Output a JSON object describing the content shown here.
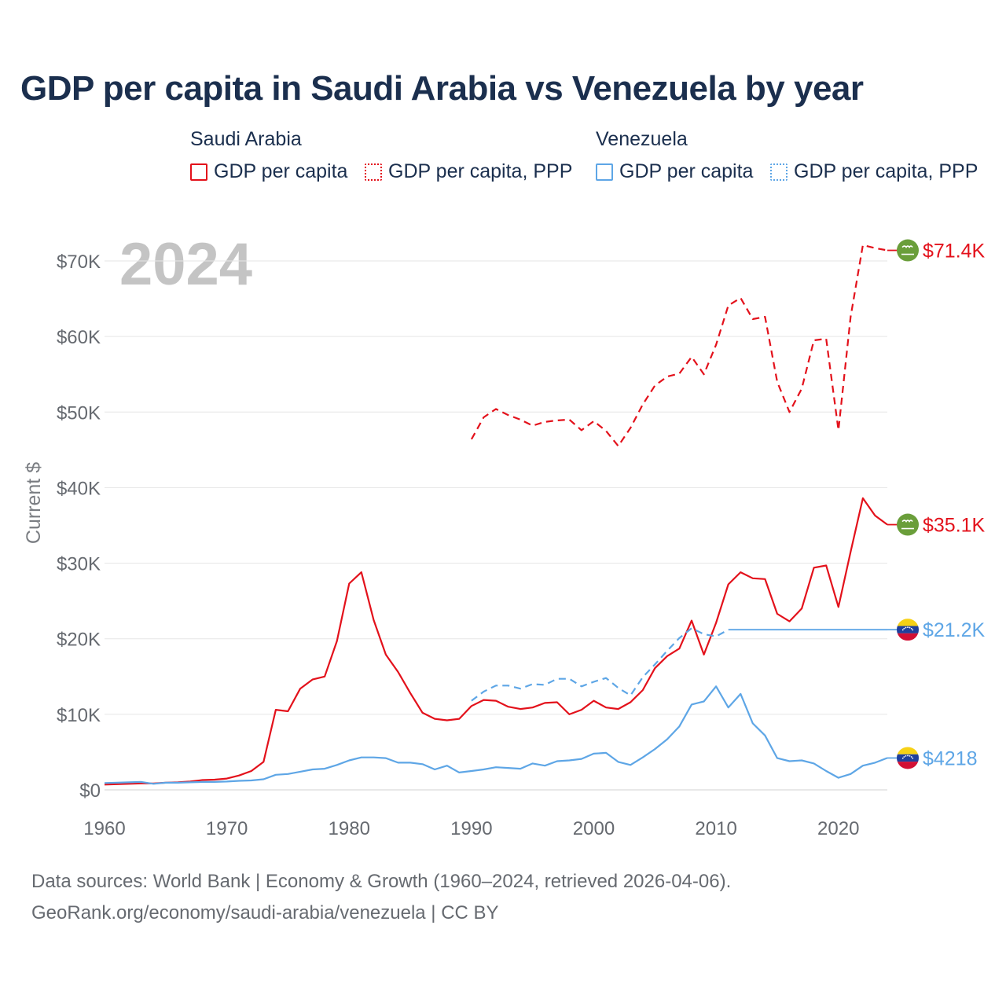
{
  "title": "GDP per capita in Saudi Arabia vs Venezuela by year",
  "legend": {
    "groups": [
      {
        "name": "Saudi Arabia",
        "items": [
          "GDP per capita",
          "GDP per capita, PPP"
        ]
      },
      {
        "name": "Venezuela",
        "items": [
          "GDP per capita",
          "GDP per capita, PPP"
        ]
      }
    ]
  },
  "footer": {
    "line1": "Data sources: World Bank | Economy & Growth (1960–2024, retrieved 2026-04-06).",
    "line2": "GeoRank.org/economy/saudi-arabia/venezuela | CC BY"
  },
  "colors": {
    "saudi": "#e3111b",
    "venezuela": "#5ea6e6",
    "title": "#1b2f4e",
    "year_watermark": "#c4c4c4",
    "saudi_flag": "#6a9e3a"
  },
  "chart_data": {
    "type": "line",
    "title": "GDP per capita in Saudi Arabia vs Venezuela by year",
    "ylabel": "Current $",
    "xlabel": "",
    "year_label": "2024",
    "xlim": [
      1960,
      2024
    ],
    "ylim": [
      0,
      70000
    ],
    "x_ticks": [
      1960,
      1970,
      1980,
      1990,
      2000,
      2010,
      2020
    ],
    "y_ticks": [
      {
        "value": 0,
        "label": "$0"
      },
      {
        "value": 10000,
        "label": "$10K"
      },
      {
        "value": 20000,
        "label": "$20K"
      },
      {
        "value": 30000,
        "label": "$30K"
      },
      {
        "value": 40000,
        "label": "$40K"
      },
      {
        "value": 50000,
        "label": "$50K"
      },
      {
        "value": 60000,
        "label": "$60K"
      },
      {
        "value": 70000,
        "label": "$70K"
      }
    ],
    "grid": true,
    "series": [
      {
        "name": "Saudi Arabia GDP per capita",
        "country": "Saudi Arabia",
        "style": "solid",
        "color": "#e3111b",
        "end_label": "$35.1K",
        "icon": "saudi-flag-icon",
        "x": [
          1960,
          1961,
          1962,
          1963,
          1964,
          1965,
          1966,
          1967,
          1968,
          1969,
          1970,
          1971,
          1972,
          1973,
          1974,
          1975,
          1976,
          1977,
          1978,
          1979,
          1980,
          1981,
          1982,
          1983,
          1984,
          1985,
          1986,
          1987,
          1988,
          1989,
          1990,
          1991,
          1992,
          1993,
          1994,
          1995,
          1996,
          1997,
          1998,
          1999,
          2000,
          2001,
          2002,
          2003,
          2004,
          2005,
          2006,
          2007,
          2008,
          2009,
          2010,
          2011,
          2012,
          2013,
          2014,
          2015,
          2016,
          2017,
          2018,
          2019,
          2020,
          2021,
          2022,
          2023,
          2024
        ],
        "values": [
          700,
          750,
          800,
          850,
          850,
          950,
          1000,
          1100,
          1300,
          1350,
          1500,
          1900,
          2500,
          3700,
          10600,
          10400,
          13400,
          14600,
          15000,
          19700,
          27300,
          28800,
          22500,
          17900,
          15600,
          12800,
          10200,
          9400,
          9200,
          9400,
          11100,
          11900,
          11800,
          11000,
          10700,
          10900,
          11500,
          11600,
          10000,
          10600,
          11800,
          10900,
          10700,
          11600,
          13200,
          16100,
          17700,
          18700,
          22400,
          17900,
          22100,
          27200,
          28800,
          28000,
          27900,
          23300,
          22300,
          24000,
          29400,
          29700,
          24200,
          31500,
          38600,
          36300,
          35100
        ]
      },
      {
        "name": "Saudi Arabia GDP per capita, PPP",
        "country": "Saudi Arabia",
        "style": "dashed",
        "color": "#e3111b",
        "end_label": "$71.4K",
        "icon": "saudi-flag-icon",
        "x": [
          1990,
          1991,
          1992,
          1993,
          1994,
          1995,
          1996,
          1997,
          1998,
          1999,
          2000,
          2001,
          2002,
          2003,
          2004,
          2005,
          2006,
          2007,
          2008,
          2009,
          2010,
          2011,
          2012,
          2013,
          2014,
          2015,
          2016,
          2017,
          2018,
          2019,
          2020,
          2021,
          2022,
          2023,
          2024
        ],
        "values": [
          46400,
          49300,
          50400,
          49600,
          49000,
          48200,
          48700,
          48900,
          49000,
          47600,
          48800,
          47500,
          45500,
          47900,
          51000,
          53500,
          54700,
          55100,
          57300,
          55000,
          58900,
          64100,
          65100,
          62300,
          62600,
          54000,
          50000,
          53100,
          59500,
          59700,
          47600,
          62600,
          72100,
          71700,
          71400
        ]
      },
      {
        "name": "Venezuela GDP per capita",
        "country": "Venezuela",
        "style": "solid",
        "color": "#5ea6e6",
        "end_label": "$4218",
        "icon": "venezuela-flag-icon",
        "x": [
          1960,
          1961,
          1962,
          1963,
          1964,
          1965,
          1966,
          1967,
          1968,
          1969,
          1970,
          1971,
          1972,
          1973,
          1974,
          1975,
          1976,
          1977,
          1978,
          1979,
          1980,
          1981,
          1982,
          1983,
          1984,
          1985,
          1986,
          1987,
          1988,
          1989,
          1990,
          1991,
          1992,
          1993,
          1994,
          1995,
          1996,
          1997,
          1998,
          1999,
          2000,
          2001,
          2002,
          2003,
          2004,
          2005,
          2006,
          2007,
          2008,
          2009,
          2010,
          2011,
          2012,
          2013,
          2014,
          2015,
          2016,
          2017,
          2018,
          2019,
          2020,
          2021,
          2022,
          2023,
          2024
        ],
        "values": [
          900,
          950,
          1000,
          1050,
          800,
          950,
          950,
          1000,
          1050,
          1050,
          1100,
          1200,
          1250,
          1400,
          2000,
          2100,
          2400,
          2700,
          2800,
          3300,
          3900,
          4300,
          4300,
          4200,
          3600,
          3600,
          3400,
          2700,
          3200,
          2300,
          2500,
          2700,
          3000,
          2900,
          2800,
          3500,
          3200,
          3800,
          3900,
          4100,
          4800,
          4900,
          3700,
          3300,
          4300,
          5400,
          6700,
          8400,
          11300,
          11700,
          13700,
          10900,
          12700,
          8800,
          7200,
          4200,
          3800,
          3900,
          3500,
          2500,
          1600,
          2100,
          3200,
          3600,
          4218
        ]
      },
      {
        "name": "Venezuela GDP per capita, PPP",
        "country": "Venezuela",
        "style": "dashed",
        "color": "#5ea6e6",
        "end_label": "$21.2K",
        "icon": "venezuela-flag-icon",
        "x": [
          1990,
          1991,
          1992,
          1993,
          1994,
          1995,
          1996,
          1997,
          1998,
          1999,
          2000,
          2001,
          2002,
          2003,
          2004,
          2005,
          2006,
          2007,
          2008,
          2009,
          2010,
          2011,
          2012,
          2013,
          2014,
          2015,
          2016,
          2017,
          2018,
          2019,
          2020,
          2021,
          2022,
          2023,
          2024
        ],
        "values": [
          11800,
          13000,
          13800,
          13800,
          13400,
          14000,
          13900,
          14700,
          14700,
          13700,
          14300,
          14800,
          13500,
          12500,
          14900,
          16600,
          18400,
          20100,
          21400,
          20600,
          20300,
          21200,
          21200,
          21200,
          21200,
          21200,
          21200,
          21200,
          21200,
          21200,
          21200,
          21200,
          21200,
          21200,
          21200
        ],
        "dashed_until": 2011
      }
    ]
  }
}
